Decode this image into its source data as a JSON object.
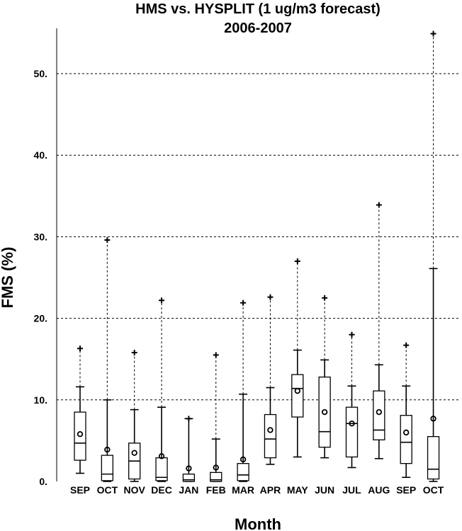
{
  "chart_data": {
    "type": "box",
    "title": "HMS vs. HYSPLIT (1 ug/m3 forecast)",
    "subtitle": "2006-2007",
    "xlabel": "Month",
    "ylabel": "FMS (%)",
    "ylim": [
      0,
      50
    ],
    "yticks": [
      0,
      10,
      20,
      30,
      40,
      50
    ],
    "ytick_labels": [
      "0.",
      "10.",
      "20.",
      "30.",
      "40.",
      "50."
    ],
    "grid": true,
    "categories": [
      "SEP",
      "OCT",
      "NOV",
      "DEC",
      "JAN",
      "FEB",
      "MAR",
      "APR",
      "MAY",
      "JUN",
      "JUL",
      "AUG",
      "SEP",
      "OCT"
    ],
    "boxes": [
      {
        "p10": 1.0,
        "q1": 2.6,
        "median": 4.7,
        "q3": 8.5,
        "p90": 11.6,
        "mean": 5.8,
        "max": 16.3,
        "min": 1.0
      },
      {
        "p10": 0.0,
        "q1": 0.1,
        "median": 0.9,
        "q3": 3.2,
        "p90": 10.0,
        "mean": 3.9,
        "max": 29.6,
        "min": 0.0
      },
      {
        "p10": 0.0,
        "q1": 0.3,
        "median": 2.5,
        "q3": 4.7,
        "p90": 8.8,
        "mean": 3.5,
        "max": 15.8,
        "min": 0.0
      },
      {
        "p10": 0.0,
        "q1": 0.1,
        "median": 0.5,
        "q3": 2.9,
        "p90": 9.1,
        "mean": 3.1,
        "max": 22.2,
        "min": 0.0
      },
      {
        "p10": 0.0,
        "q1": 0.0,
        "median": 0.2,
        "q3": 0.9,
        "p90": 7.7,
        "mean": 1.6,
        "max": 7.7,
        "min": 0.0
      },
      {
        "p10": 0.0,
        "q1": 0.0,
        "median": 0.2,
        "q3": 1.1,
        "p90": 5.2,
        "mean": 1.7,
        "max": 15.5,
        "min": 0.0
      },
      {
        "p10": 0.0,
        "q1": 0.1,
        "median": 0.8,
        "q3": 2.2,
        "p90": 10.7,
        "mean": 2.7,
        "max": 21.9,
        "min": 0.0
      },
      {
        "p10": 2.1,
        "q1": 2.9,
        "median": 5.2,
        "q3": 8.2,
        "p90": 11.5,
        "mean": 6.3,
        "max": 22.6,
        "min": 2.1
      },
      {
        "p10": 3.0,
        "q1": 7.9,
        "median": 11.4,
        "q3": 13.1,
        "p90": 16.1,
        "mean": 11.1,
        "max": 27.0,
        "min": 3.0
      },
      {
        "p10": 2.9,
        "q1": 4.2,
        "median": 6.1,
        "q3": 12.8,
        "p90": 14.9,
        "mean": 8.5,
        "max": 22.5,
        "min": 2.9
      },
      {
        "p10": 1.7,
        "q1": 3.0,
        "median": 7.1,
        "q3": 9.1,
        "p90": 11.7,
        "mean": 7.1,
        "max": 18.0,
        "min": 1.7
      },
      {
        "p10": 2.8,
        "q1": 5.1,
        "median": 6.3,
        "q3": 11.1,
        "p90": 14.3,
        "mean": 8.5,
        "max": 33.9,
        "min": 2.8
      },
      {
        "p10": 0.5,
        "q1": 2.2,
        "median": 4.8,
        "q3": 8.1,
        "p90": 11.7,
        "mean": 6.0,
        "max": 16.7,
        "min": 0.5
      },
      {
        "p10": 0.0,
        "q1": 0.3,
        "median": 1.5,
        "q3": 5.5,
        "p90": 26.1,
        "mean": 7.7,
        "max": 54.9,
        "min": 0.0
      }
    ]
  }
}
